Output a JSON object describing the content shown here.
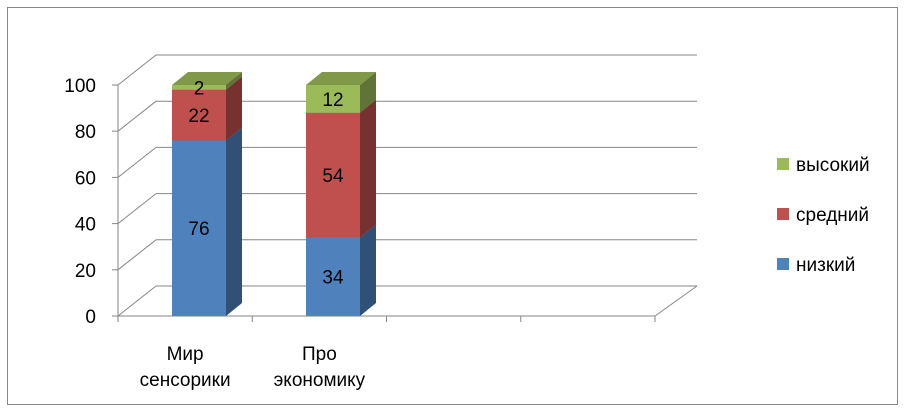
{
  "chart_data": {
    "type": "bar",
    "stacked": true,
    "three_d": true,
    "categories": [
      "Мир сенсорики",
      "Про экономику"
    ],
    "category_lines": [
      [
        "Мир",
        "сенсорики"
      ],
      [
        "Про",
        "экономику"
      ]
    ],
    "series": [
      {
        "name": "низкий",
        "values": [
          76,
          34
        ],
        "color": "#4F81BD"
      },
      {
        "name": "средний",
        "values": [
          22,
          54
        ],
        "color": "#C0504D"
      },
      {
        "name": "высокий",
        "values": [
          2,
          12
        ],
        "color": "#9BBB59"
      }
    ],
    "ylim": [
      0,
      100
    ],
    "yticks": [
      0,
      20,
      40,
      60,
      80,
      100
    ],
    "grid": true,
    "legend_position": "right",
    "data_labels": true
  }
}
